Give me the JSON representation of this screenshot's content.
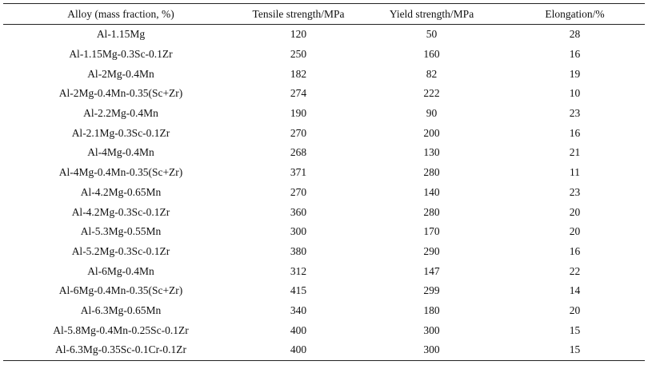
{
  "table": {
    "headers": [
      "Alloy (mass fraction, %)",
      "Tensile strength/MPa",
      "Yield strength/MPa",
      "Elongation/%"
    ],
    "rows": [
      [
        "Al-1.15Mg",
        "120",
        "50",
        "28"
      ],
      [
        "Al-1.15Mg-0.3Sc-0.1Zr",
        "250",
        "160",
        "16"
      ],
      [
        "Al-2Mg-0.4Mn",
        "182",
        "82",
        "19"
      ],
      [
        "Al-2Mg-0.4Mn-0.35(Sc+Zr)",
        "274",
        "222",
        "10"
      ],
      [
        "Al-2.2Mg-0.4Mn",
        "190",
        "90",
        "23"
      ],
      [
        "Al-2.1Mg-0.3Sc-0.1Zr",
        "270",
        "200",
        "16"
      ],
      [
        "Al-4Mg-0.4Mn",
        "268",
        "130",
        "21"
      ],
      [
        "Al-4Mg-0.4Mn-0.35(Sc+Zr)",
        "371",
        "280",
        "11"
      ],
      [
        "Al-4.2Mg-0.65Mn",
        "270",
        "140",
        "23"
      ],
      [
        "Al-4.2Mg-0.3Sc-0.1Zr",
        "360",
        "280",
        "20"
      ],
      [
        "Al-5.3Mg-0.55Mn",
        "300",
        "170",
        "20"
      ],
      [
        "Al-5.2Mg-0.3Sc-0.1Zr",
        "380",
        "290",
        "16"
      ],
      [
        "Al-6Mg-0.4Mn",
        "312",
        "147",
        "22"
      ],
      [
        "Al-6Mg-0.4Mn-0.35(Sc+Zr)",
        "415",
        "299",
        "14"
      ],
      [
        "Al-6.3Mg-0.65Mn",
        "340",
        "180",
        "20"
      ],
      [
        "Al-5.8Mg-0.4Mn-0.25Sc-0.1Zr",
        "400",
        "300",
        "15"
      ],
      [
        "Al-6.3Mg-0.35Sc-0.1Cr-0.1Zr",
        "400",
        "300",
        "15"
      ]
    ]
  }
}
